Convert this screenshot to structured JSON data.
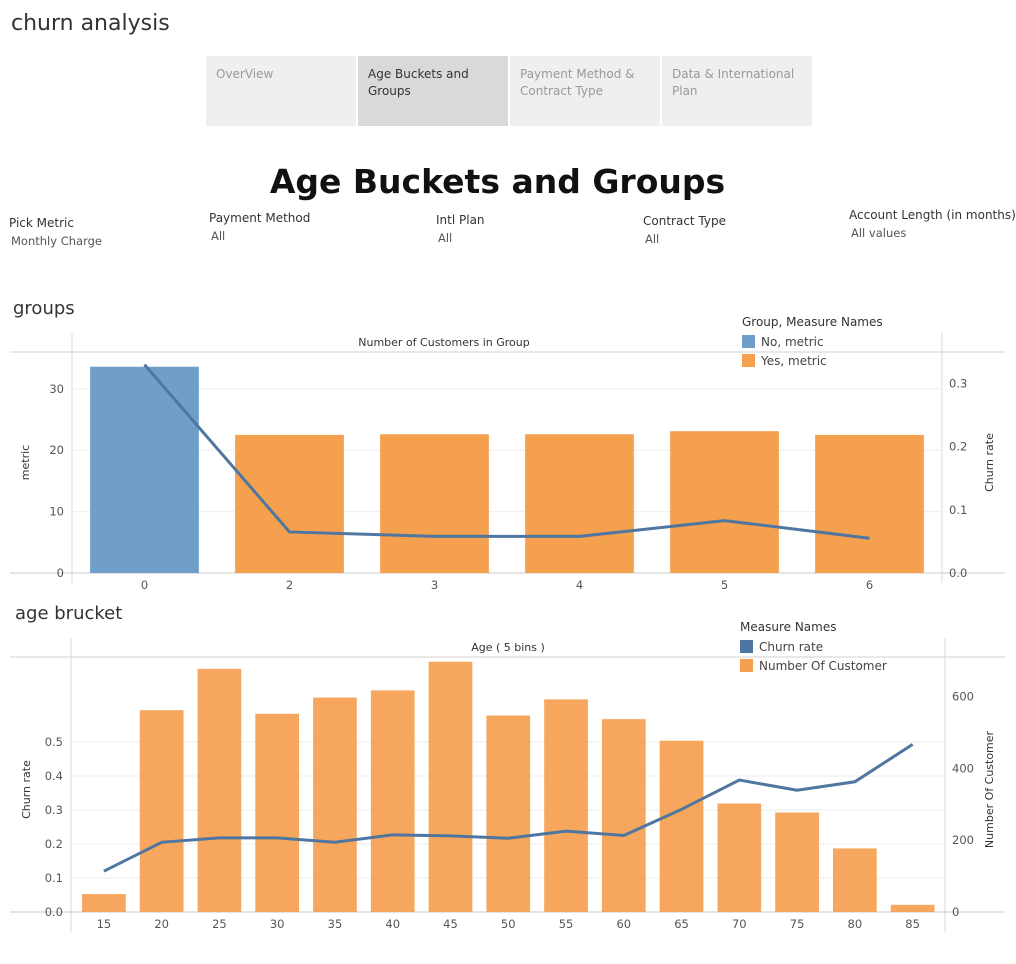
{
  "app": {
    "title": "churn analysis"
  },
  "tabs": [
    {
      "label": "OverView",
      "active": false
    },
    {
      "label": "Age Buckets and Groups",
      "active": true
    },
    {
      "label": "Payment Method & Contract Type",
      "active": false
    },
    {
      "label": "Data & International Plan",
      "active": false
    }
  ],
  "page": {
    "title": "Age Buckets and Groups"
  },
  "filters": [
    {
      "label": "Pick Metric",
      "value": "Monthly Charge"
    },
    {
      "label": "Payment Method",
      "value": "All"
    },
    {
      "label": "Intl Plan",
      "value": "All"
    },
    {
      "label": "Contract Type",
      "value": "All"
    },
    {
      "label": "Account Length (in months)",
      "value": "All values"
    }
  ],
  "colors": {
    "blue": "#6f9fc8",
    "orange": "#f5a04f",
    "line": "#4f76a0"
  },
  "chart_data": [
    {
      "section_title": "groups",
      "type": "bar",
      "title": "Number of Customers in Group",
      "categories": [
        "0",
        "2",
        "3",
        "4",
        "5",
        "6"
      ],
      "series": [
        {
          "name": "metric",
          "values": [
            33.6,
            22.5,
            22.6,
            22.6,
            23.1,
            22.5
          ],
          "colors": [
            "No",
            "Yes",
            "Yes",
            "Yes",
            "Yes",
            "Yes"
          ]
        },
        {
          "name": "Churn rate",
          "type": "line",
          "values": [
            0.33,
            0.065,
            0.058,
            0.058,
            0.083,
            0.055
          ]
        }
      ],
      "ylabel": "metric",
      "y2label": "Churn rate",
      "ylim": [
        0,
        36
      ],
      "y2lim": [
        0,
        0.35
      ],
      "yticks": [
        "0",
        "10",
        "20",
        "30"
      ],
      "y2ticks": [
        "0.0",
        "0.1",
        "0.2",
        "0.3"
      ],
      "legend": {
        "title": "Group, Measure Names",
        "items": [
          {
            "label": "No, metric",
            "color": "#6f9fc8"
          },
          {
            "label": "Yes, metric",
            "color": "#f5a04f"
          }
        ],
        "position": "top-right"
      }
    },
    {
      "section_title": "age brucket",
      "type": "bar",
      "title": "Age ( 5 bins )",
      "categories": [
        "15",
        "20",
        "25",
        "30",
        "35",
        "40",
        "45",
        "50",
        "55",
        "60",
        "65",
        "70",
        "75",
        "80",
        "85"
      ],
      "series": [
        {
          "name": "Number Of Customer",
          "values": [
            50,
            562,
            677,
            552,
            597,
            617,
            697,
            547,
            592,
            537,
            477,
            302,
            277,
            177,
            20
          ]
        },
        {
          "name": "Churn rate",
          "type": "line",
          "values": [
            0.12,
            0.205,
            0.218,
            0.218,
            0.205,
            0.227,
            0.224,
            0.217,
            0.238,
            0.225,
            0.302,
            0.388,
            0.358,
            0.383,
            0.493
          ]
        }
      ],
      "ylabel": "Churn rate",
      "y2label": "Number Of Customer",
      "ylim": [
        0,
        0.75
      ],
      "y2lim": [
        0,
        710
      ],
      "yticks": [
        "0.0",
        "0.1",
        "0.2",
        "0.3",
        "0.4",
        "0.5"
      ],
      "y2ticks": [
        "0",
        "200",
        "400",
        "600"
      ],
      "legend": {
        "title": "Measure Names",
        "items": [
          {
            "label": "Churn rate",
            "color": "#4f76a0"
          },
          {
            "label": "Number Of Customer",
            "color": "#f5a04f"
          }
        ],
        "position": "top-right"
      }
    }
  ]
}
